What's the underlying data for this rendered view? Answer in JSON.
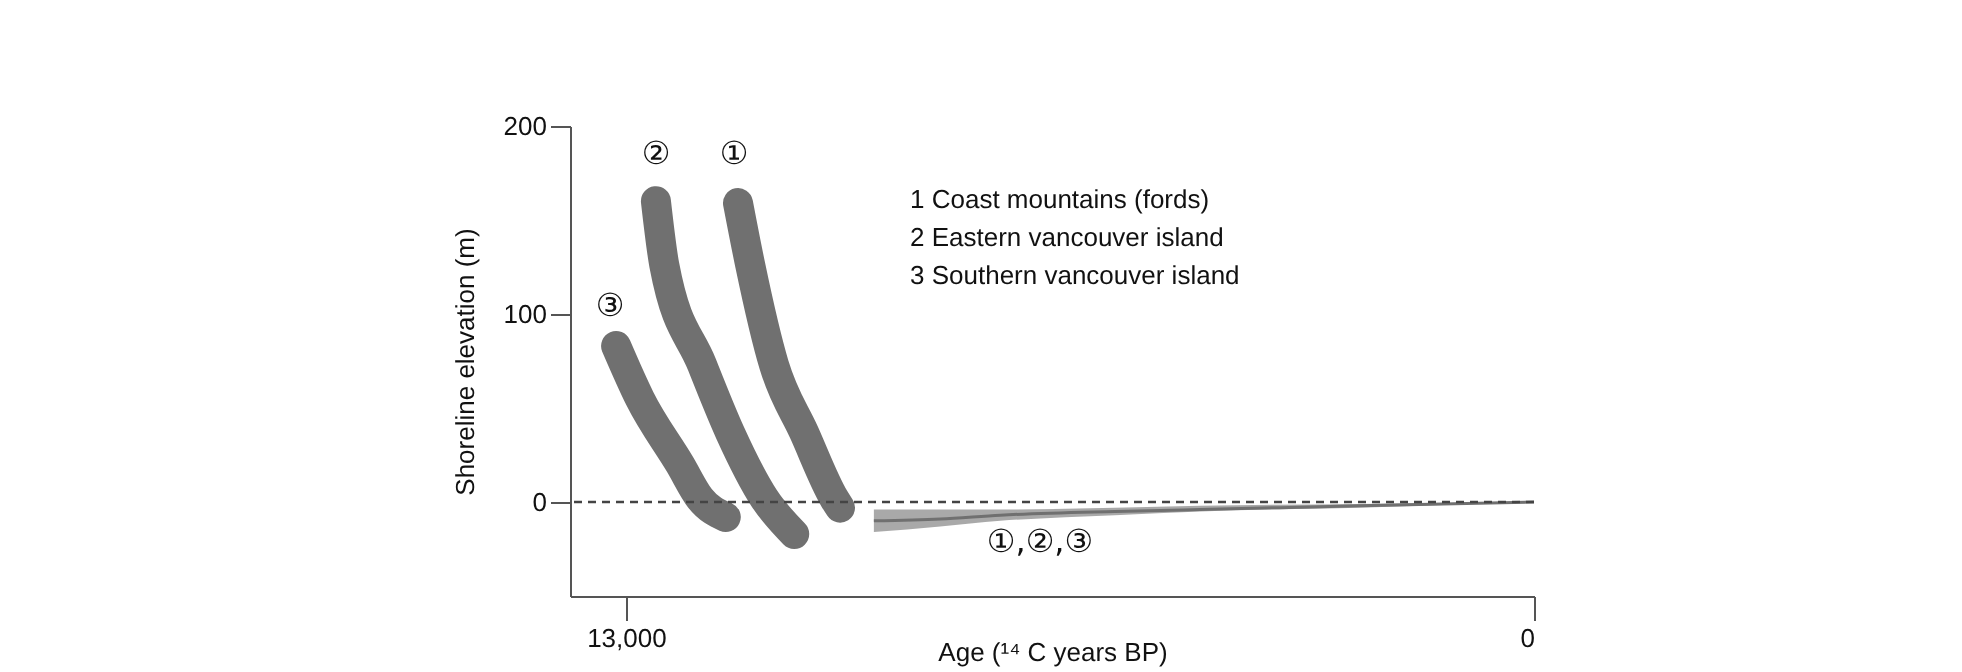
{
  "chart_data": {
    "type": "line",
    "xlabel": "Age (¹⁴ C years BP)",
    "ylabel": "Shoreline elevation (m)",
    "xlim": [
      13800,
      0
    ],
    "xticks": [
      {
        "value": 13000,
        "label": "13,000"
      },
      0
    ],
    "ylim": [
      -50,
      200
    ],
    "yticks": [
      0,
      100,
      200
    ],
    "series": [
      {
        "color": "#707070",
        "x": [
          11395,
          11220,
          10880,
          10450,
          10020,
          9935
        ],
        "values": [
          159,
          126,
          73,
          37,
          2,
          -3
        ]
      },
      {
        "color": "#707070",
        "x": [
          12570,
          12450,
          11910,
          11510,
          11020,
          10590
        ],
        "values": [
          160,
          126,
          73,
          37,
          2,
          -17
        ]
      },
      {
        "color": "#707070",
        "x": [
          13140,
          12800,
          12225,
          11940,
          11570
        ],
        "values": [
          83,
          55,
          20,
          2,
          -8
        ]
      },
      {
        "color": "#707070",
        "x": [
          9450,
          8500,
          7640,
          6000,
          4780,
          2500,
          0
        ],
        "values": [
          -10,
          -9,
          -7,
          -5,
          -4,
          -2,
          0
        ],
        "lower": [
          -16,
          -13,
          -10,
          -7,
          -5,
          -3,
          0
        ],
        "upper": [
          -4,
          -4,
          -4,
          -3,
          -2,
          -1,
          0
        ]
      }
    ],
    "ref_lines": [
      {
        "axis": "y",
        "value": 0,
        "line_style": "dashed",
        "color": "#444444"
      }
    ],
    "annotations": [
      "②",
      "①",
      "③",
      "①,②,③",
      "1   Coast mountains (fords)",
      "2   Eastern vancouver island",
      "3   Southern vancouver island"
    ]
  }
}
